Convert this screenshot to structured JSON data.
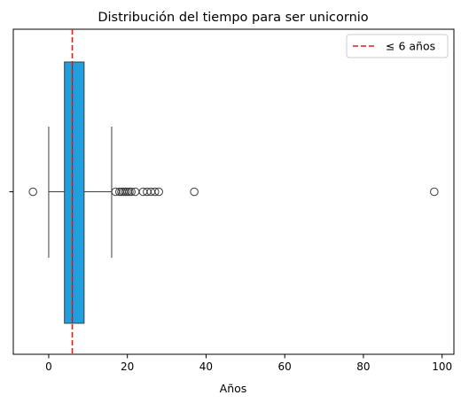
{
  "chart_data": {
    "type": "boxplot",
    "orientation": "horizontal",
    "title": "Distribución del tiempo para ser unicornio",
    "xlabel": "Años",
    "ylabel": "",
    "xlim": [
      -9,
      103
    ],
    "xticks": [
      0,
      20,
      40,
      60,
      80,
      100
    ],
    "xtick_labels": [
      "0",
      "20",
      "40",
      "60",
      "80",
      "100"
    ],
    "grid": false,
    "box": {
      "color": "#1f9fde",
      "q1": 4,
      "median": 6,
      "q3": 9,
      "whisker_low": 0,
      "whisker_high": 16,
      "outliers": [
        -4,
        17,
        18,
        18.5,
        19,
        19.5,
        20,
        20.5,
        21,
        22,
        24,
        25,
        26,
        27,
        28,
        37,
        98
      ]
    },
    "reference_line": {
      "x": 6,
      "label": "≤ 6 años",
      "color": "#e41a1c",
      "style": "dashed"
    },
    "legend": {
      "position": "top-right",
      "entries": [
        "≤ 6 años"
      ]
    }
  }
}
